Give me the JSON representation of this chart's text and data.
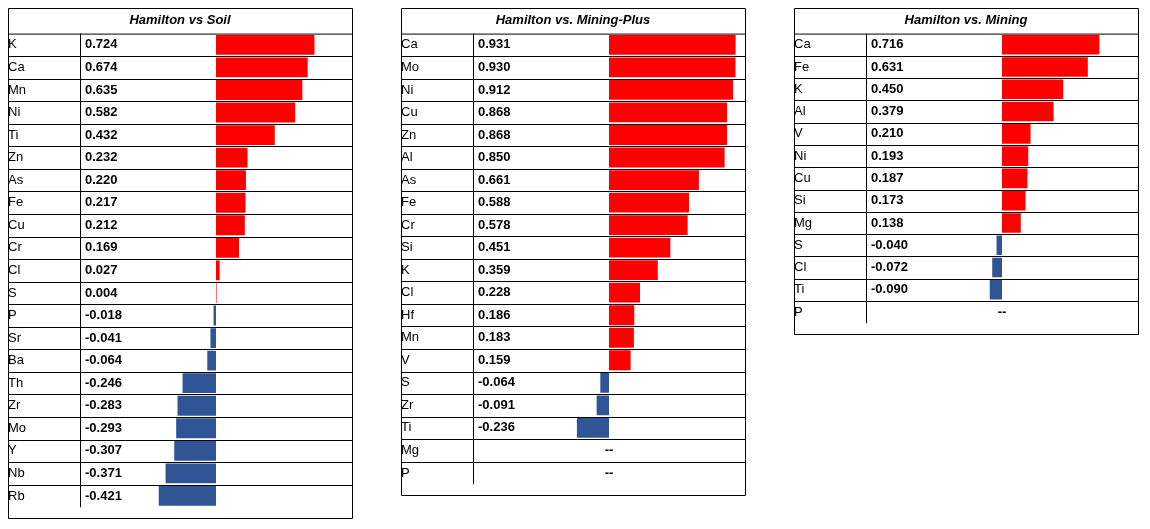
{
  "chart_data": [
    {
      "type": "bar",
      "orientation": "horizontal",
      "title": "Hamilton vs Soil",
      "tick_labels": "y",
      "xlim": [
        -1,
        1
      ],
      "categories": [
        "K",
        "Ca",
        "Mn",
        "Ni",
        "Ti",
        "Zn",
        "As",
        "Fe",
        "Cu",
        "Cr",
        "Cl",
        "S",
        "P",
        "Sr",
        "Ba",
        "Th",
        "Zr",
        "Mo",
        "Y",
        "Nb",
        "Rb"
      ],
      "values": [
        0.724,
        0.674,
        0.635,
        0.582,
        0.432,
        0.232,
        0.22,
        0.217,
        0.212,
        0.169,
        0.027,
        0.004,
        -0.018,
        -0.041,
        -0.064,
        -0.246,
        -0.283,
        -0.293,
        -0.307,
        -0.371,
        -0.421
      ],
      "colors": [
        "#ff0000",
        "#ff0000",
        "#ff0000",
        "#ff0000",
        "#ff0000",
        "#ff0000",
        "#ff0000",
        "#ff0000",
        "#ff0000",
        "#ff0000",
        "#ff0000",
        "#ff0000",
        "#2f5597",
        "#2f5597",
        "#2f5597",
        "#2f5597",
        "#2f5597",
        "#2f5597",
        "#2f5597",
        "#2f5597",
        "#2f5597"
      ],
      "value_labels": [
        "0.724",
        "0.674",
        "0.635",
        "0.582",
        "0.432",
        "0.232",
        "0.220",
        "0.217",
        "0.212",
        "0.169",
        "0.027",
        "0.004",
        "-0.018",
        "-0.041",
        "-0.064",
        "-0.246",
        "-0.283",
        "-0.293",
        "-0.307",
        "-0.371",
        "-0.421"
      ]
    },
    {
      "type": "bar",
      "orientation": "horizontal",
      "title": "Hamilton vs. Mining-Plus",
      "tick_labels": "y",
      "xlim": [
        -1,
        1
      ],
      "categories": [
        "Ca",
        "Mo",
        "Ni",
        "Cu",
        "Zn",
        "Al",
        "As",
        "Fe",
        "Cr",
        "Si",
        "K",
        "Cl",
        "Hf",
        "Mn",
        "V",
        "S",
        "Zr",
        "Ti",
        "Mg",
        "P"
      ],
      "values": [
        0.931,
        0.93,
        0.912,
        0.868,
        0.868,
        0.85,
        0.661,
        0.588,
        0.578,
        0.451,
        0.359,
        0.228,
        0.186,
        0.183,
        0.159,
        -0.064,
        -0.091,
        -0.236,
        null,
        null
      ],
      "colors": [
        "#ff0000",
        "#ff0000",
        "#ff0000",
        "#ff0000",
        "#ff0000",
        "#ff0000",
        "#ff0000",
        "#ff0000",
        "#ff0000",
        "#ff0000",
        "#ff0000",
        "#ff0000",
        "#ff0000",
        "#ff0000",
        "#ff0000",
        "#2f5597",
        "#2f5597",
        "#2f5597",
        "#2f5597",
        "#2f5597"
      ],
      "value_labels": [
        "0.931",
        "0.930",
        "0.912",
        "0.868",
        "0.868",
        "0.850",
        "0.661",
        "0.588",
        "0.578",
        "0.451",
        "0.359",
        "0.228",
        "0.186",
        "0.183",
        "0.159",
        "-0.064",
        "-0.091",
        "-0.236",
        "--",
        "--"
      ]
    },
    {
      "type": "bar",
      "orientation": "horizontal",
      "title": "Hamilton vs. Mining",
      "tick_labels": "y",
      "xlim": [
        -1,
        1
      ],
      "categories": [
        "Ca",
        "Fe",
        "K",
        "Al",
        "V",
        "Ni",
        "Cu",
        "Si",
        "Mg",
        "S",
        "Cl",
        "Ti",
        "P"
      ],
      "values": [
        0.716,
        0.631,
        0.45,
        0.379,
        0.21,
        0.193,
        0.187,
        0.173,
        0.138,
        -0.04,
        -0.072,
        -0.09,
        null
      ],
      "colors": [
        "#ff0000",
        "#ff0000",
        "#ff0000",
        "#ff0000",
        "#ff0000",
        "#ff0000",
        "#ff0000",
        "#ff0000",
        "#ff0000",
        "#2f5597",
        "#2f5597",
        "#2f5597",
        "#2f5597"
      ],
      "value_labels": [
        "0.716",
        "0.631",
        "0.450",
        "0.379",
        "0.210",
        "0.193",
        "0.187",
        "0.173",
        "0.138",
        "-0.040",
        "-0.072",
        "-0.090",
        "--"
      ]
    }
  ]
}
